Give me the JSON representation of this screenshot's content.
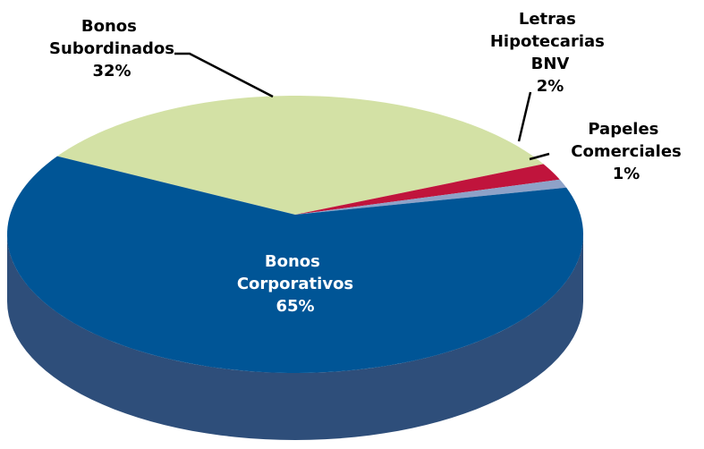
{
  "chart_data": {
    "type": "pie",
    "categories": [
      "Bonos Subordinados",
      "Letras Hipotecarias BNV",
      "Papeles Comerciales",
      "Bonos Corporativos"
    ],
    "values": [
      32,
      2,
      1,
      65
    ],
    "value_labels": [
      "32%",
      "2%",
      "1%",
      "65%"
    ],
    "colors": [
      "#d3e1a5",
      "#c0143c",
      "#8ea2c8",
      "#005596"
    ],
    "side_colors": [
      "#a9b884",
      "#8e0f2c",
      "#6d7d9c",
      "#2e4e7a"
    ]
  }
}
